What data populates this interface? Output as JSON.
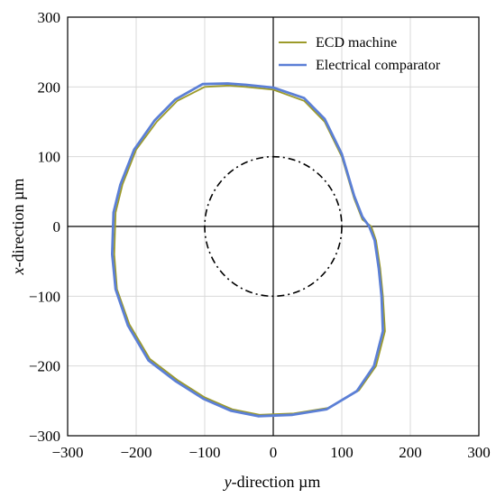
{
  "chart_data": {
    "type": "line",
    "title": "",
    "xlabel_var": "y",
    "xlabel_rest": "-direction µm",
    "ylabel_var": "x",
    "ylabel_rest": "-direction µm",
    "xlim": [
      -300,
      300
    ],
    "ylim": [
      -300,
      300
    ],
    "xticks": [
      -300,
      -200,
      -100,
      0,
      100,
      200,
      300
    ],
    "yticks": [
      -300,
      -200,
      -100,
      0,
      100,
      200,
      300
    ],
    "grid": true,
    "legend_position": "top-right",
    "series": [
      {
        "name": "ECD machine",
        "color": "#9c9a2a",
        "points": [
          [
            0,
            196
          ],
          [
            45,
            180
          ],
          [
            75,
            150
          ],
          [
            100,
            100
          ],
          [
            118,
            40
          ],
          [
            130,
            10
          ],
          [
            143,
            0
          ],
          [
            150,
            -20
          ],
          [
            156,
            -60
          ],
          [
            160,
            -100
          ],
          [
            163,
            -150
          ],
          [
            150,
            -200
          ],
          [
            125,
            -235
          ],
          [
            80,
            -260
          ],
          [
            30,
            -268
          ],
          [
            -20,
            -270
          ],
          [
            -60,
            -262
          ],
          [
            -100,
            -245
          ],
          [
            -140,
            -220
          ],
          [
            -180,
            -190
          ],
          [
            -210,
            -140
          ],
          [
            -228,
            -90
          ],
          [
            -232,
            -40
          ],
          [
            -230,
            20
          ],
          [
            -220,
            60
          ],
          [
            -200,
            110
          ],
          [
            -170,
            150
          ],
          [
            -140,
            180
          ],
          [
            -100,
            200
          ],
          [
            -65,
            202
          ],
          [
            -40,
            200
          ],
          [
            0,
            196
          ]
        ]
      },
      {
        "name": "Electrical comparator",
        "color": "#5b7fd6",
        "points": [
          [
            0,
            199
          ],
          [
            45,
            184
          ],
          [
            75,
            154
          ],
          [
            100,
            104
          ],
          [
            118,
            44
          ],
          [
            130,
            14
          ],
          [
            140,
            0
          ],
          [
            148,
            -20
          ],
          [
            154,
            -60
          ],
          [
            158,
            -100
          ],
          [
            160,
            -150
          ],
          [
            147,
            -200
          ],
          [
            122,
            -236
          ],
          [
            78,
            -262
          ],
          [
            28,
            -270
          ],
          [
            -22,
            -272
          ],
          [
            -62,
            -264
          ],
          [
            -102,
            -247
          ],
          [
            -142,
            -222
          ],
          [
            -182,
            -192
          ],
          [
            -212,
            -142
          ],
          [
            -230,
            -90
          ],
          [
            -235,
            -40
          ],
          [
            -233,
            20
          ],
          [
            -223,
            60
          ],
          [
            -203,
            110
          ],
          [
            -173,
            152
          ],
          [
            -143,
            182
          ],
          [
            -103,
            204
          ],
          [
            -67,
            205
          ],
          [
            -40,
            203
          ],
          [
            0,
            199
          ]
        ]
      },
      {
        "name": "",
        "color": "#000000",
        "style": "dash-dot",
        "circle": {
          "center": [
            0,
            0
          ],
          "radius": 100
        }
      }
    ]
  }
}
